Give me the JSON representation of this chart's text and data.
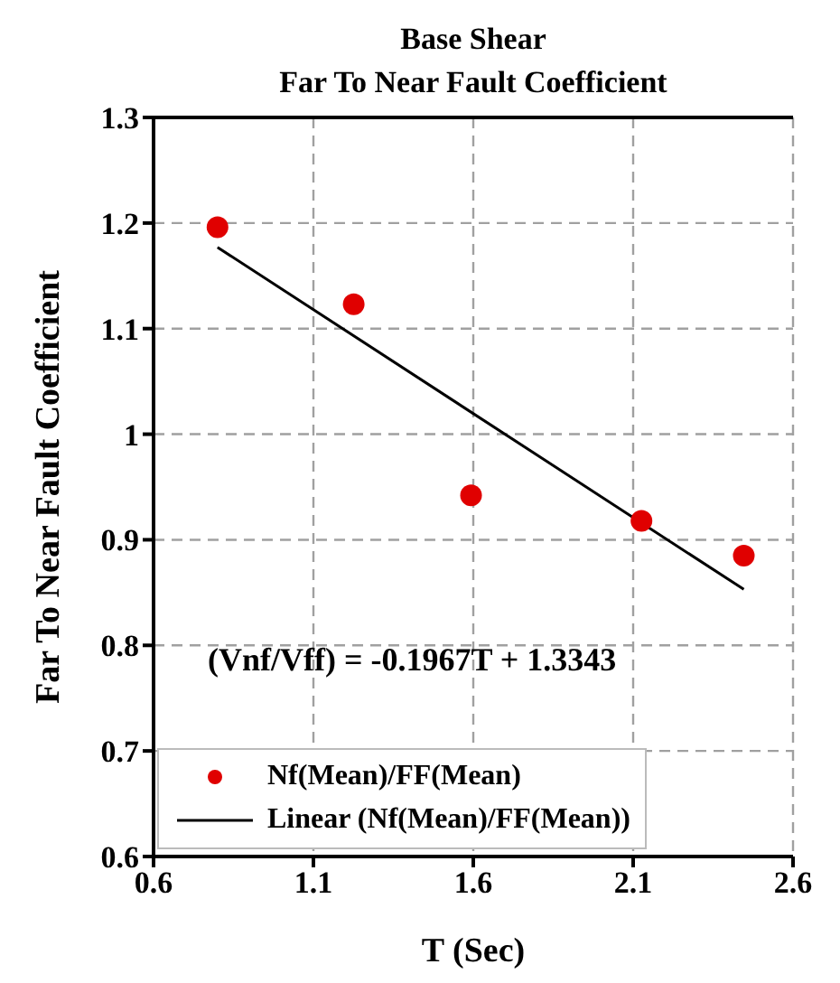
{
  "chart_data": {
    "type": "scatter",
    "title": "Base Shear",
    "subtitle": "Far To Near Fault Coefficient",
    "xlabel": "T (Sec)",
    "ylabel": "Far To Near Fault Coefficient",
    "annotations": [
      "(Vnf/Vff) = -0.1967T + 1.3343"
    ],
    "series": [
      {
        "name": "Nf(Mean)/FF(Mean)",
        "color": "#e00000",
        "marker": "circle",
        "x": [
          0.8,
          1.226,
          1.593,
          2.126,
          2.446
        ],
        "values": [
          1.196,
          1.123,
          0.942,
          0.918,
          0.885
        ]
      },
      {
        "name": "Linear (Nf(Mean)/FF(Mean))",
        "type": "line",
        "color": "#000000",
        "marker": "none",
        "line_style": "solid",
        "x": [
          0.8,
          2.446
        ],
        "values": [
          1.177,
          0.853
        ]
      }
    ],
    "xlim": [
      0.6,
      2.6
    ],
    "xticks": [
      0.6,
      1.1,
      1.6,
      2.1,
      2.6
    ],
    "ylim": [
      0.6,
      1.3
    ],
    "yticks": [
      0.6,
      0.7,
      0.8,
      0.9,
      1,
      1.1,
      1.2,
      1.3
    ],
    "grid": true,
    "legend": "bottom left"
  }
}
